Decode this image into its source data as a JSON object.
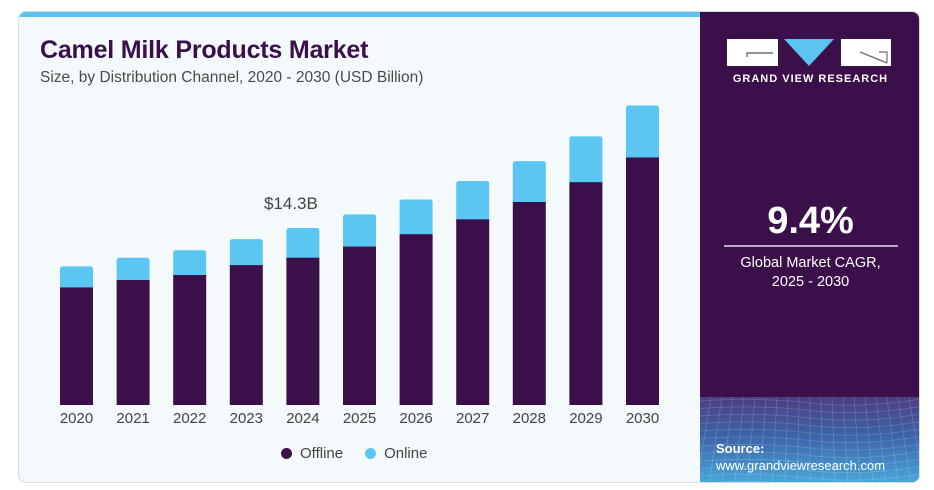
{
  "header": {
    "title": "Camel Milk Products Market",
    "subtitle": "Size, by Distribution Channel, 2020 - 2030 (USD Billion)"
  },
  "colors": {
    "offline": "#3a0f4a",
    "online": "#5bc6f2",
    "accent_bar": "#5bc4ef",
    "panel": "#3a0f4a"
  },
  "chart_data": {
    "type": "bar",
    "stacked": true,
    "title": "Camel Milk Products Market",
    "subtitle": "Size, by Distribution Channel, 2020 - 2030 (USD Billion)",
    "xlabel": "",
    "ylabel": "",
    "categories": [
      "2020",
      "2021",
      "2022",
      "2023",
      "2024",
      "2025",
      "2026",
      "2027",
      "2028",
      "2029",
      "2030"
    ],
    "series": [
      {
        "name": "Offline",
        "values": [
          9.5,
          10.1,
          10.5,
          11.3,
          11.9,
          12.8,
          13.8,
          15.0,
          16.4,
          18.0,
          20.0
        ]
      },
      {
        "name": "Online",
        "values": [
          1.7,
          1.8,
          2.0,
          2.1,
          2.4,
          2.6,
          2.8,
          3.1,
          3.3,
          3.7,
          4.2
        ]
      }
    ],
    "ylim": [
      0,
      25
    ],
    "grid": false,
    "y_axis_visible": false,
    "legend": {
      "position": "bottom",
      "entries": [
        "Offline",
        "Online"
      ]
    },
    "annotations": [
      {
        "category": "2024",
        "text": "$14.3B"
      }
    ]
  },
  "legend": {
    "items": [
      {
        "label": "Offline"
      },
      {
        "label": "Online"
      }
    ]
  },
  "sidebar": {
    "brand": "GRAND VIEW RESEARCH",
    "cagr_value": "9.4%",
    "cagr_label_line1": "Global Market CAGR,",
    "cagr_label_line2": "2025 - 2030",
    "source_label": "Source:",
    "source_url": "www.grandviewresearch.com"
  }
}
